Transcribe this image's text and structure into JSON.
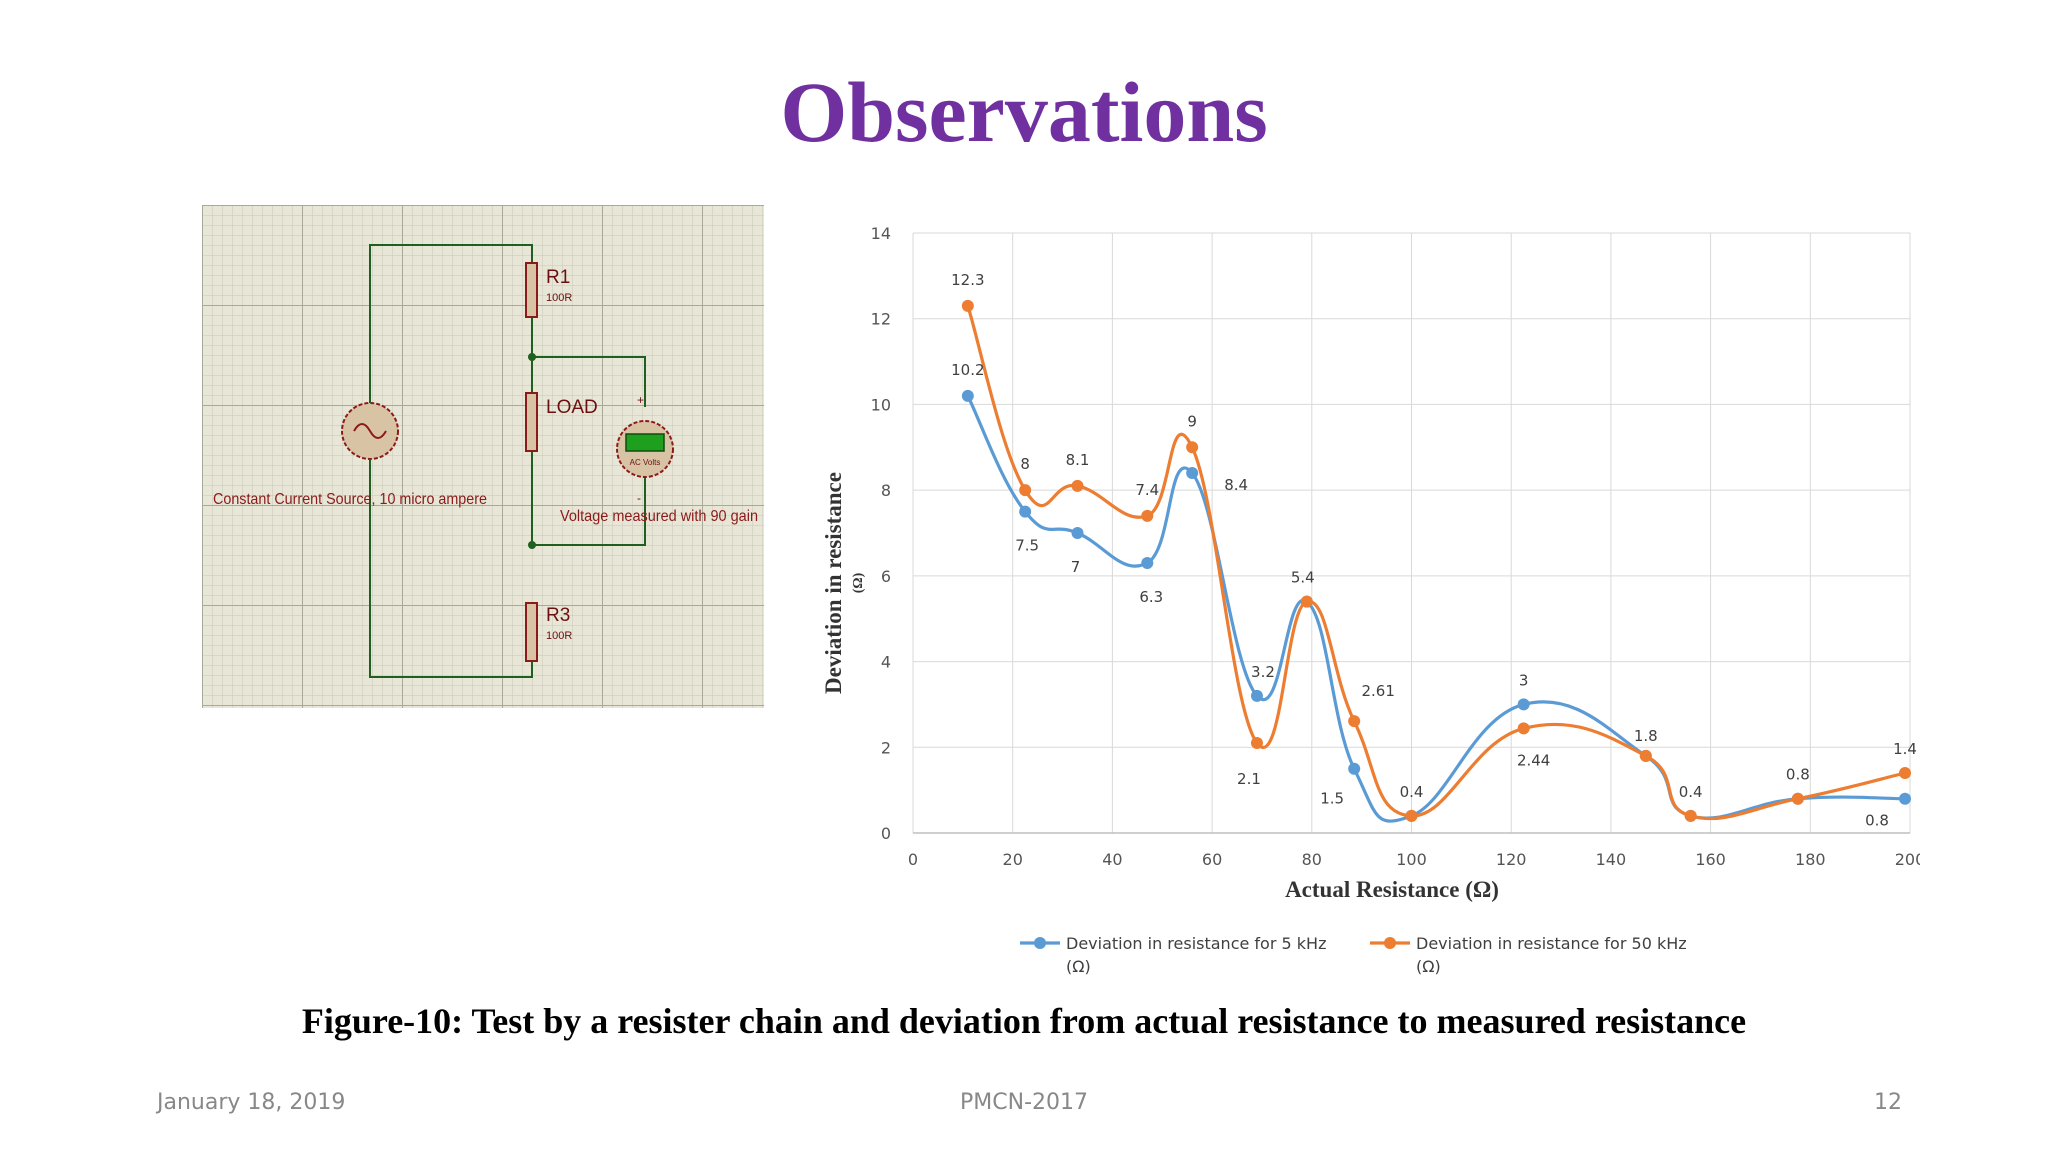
{
  "slide": {
    "title": "Observations",
    "caption": "Figure-10: Test by a resister chain and deviation from actual resistance to measured resistance",
    "footer": {
      "date": "January 18, 2019",
      "conference": "PMCN-2017",
      "page": "12"
    }
  },
  "circuit": {
    "r1_label": "R1",
    "r1_value": "100R",
    "load_label": "LOAD",
    "r3_label": "R3",
    "r3_value": "100R",
    "source_label": "Constant Current Source, 10 micro ampere",
    "meter_label": "Voltage measured with 90 gain",
    "meter_unit": "AC Volts",
    "plus": "+",
    "minus": "-",
    "colors": {
      "grid_bg": "#e8e6d6",
      "wire": "#1f5f1f",
      "component": "#8b1a1a",
      "component_fill": "#d9c3a5",
      "meter_screen": "#1ea01e"
    }
  },
  "chart_data": {
    "type": "line",
    "xlabel": "Actual Resistance (Ω)",
    "ylabel": "Deviation in resistance",
    "ylabel_unit": "(Ω)",
    "xlim": [
      0,
      200
    ],
    "ylim": [
      0,
      14
    ],
    "xticks": [
      0,
      20,
      40,
      60,
      80,
      100,
      120,
      140,
      160,
      180,
      200
    ],
    "yticks": [
      0,
      2,
      4,
      6,
      8,
      10,
      12,
      14
    ],
    "grid": true,
    "legend_position": "bottom",
    "series": [
      {
        "name": "Deviation in resistance for 5 kHz",
        "name_unit": "(Ω)",
        "color": "#5b9bd5",
        "x": [
          11,
          22.5,
          33,
          47,
          56,
          69,
          79,
          88.5,
          100,
          122.5,
          147,
          156,
          177.5,
          199
        ],
        "y": [
          10.2,
          7.5,
          7,
          6.3,
          8.4,
          3.2,
          5.4,
          1.5,
          0.4,
          3,
          1.8,
          0.4,
          0.8,
          0.8
        ],
        "labels": [
          "10.2",
          "7.5",
          "7",
          "6.3",
          "8.4",
          "3.2",
          "",
          "1.5",
          "",
          "3",
          "1.8",
          "",
          "",
          "0.8"
        ]
      },
      {
        "name": "Deviation in resistance for 50 kHz",
        "name_unit": "(Ω)",
        "color": "#ed7d31",
        "x": [
          11,
          22.5,
          33,
          47,
          56,
          69,
          79,
          88.5,
          100,
          122.5,
          147,
          156,
          177.5,
          199
        ],
        "y": [
          12.3,
          8,
          8.1,
          7.4,
          9,
          2.1,
          5.4,
          2.61,
          0.4,
          2.44,
          1.8,
          0.4,
          0.8,
          1.4
        ],
        "labels": [
          "12.3",
          "8",
          "8.1",
          "7.4",
          "9",
          "2.1",
          "5.4",
          "2.61",
          "0.4",
          "2.44",
          "",
          "0.4",
          "0.8",
          "1.4"
        ]
      }
    ]
  }
}
